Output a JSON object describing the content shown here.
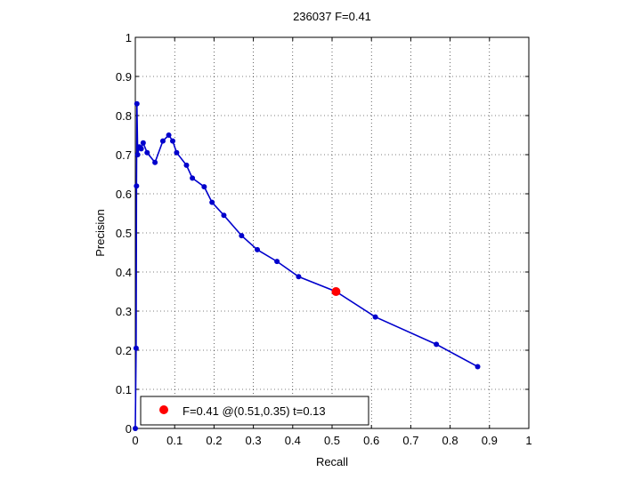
{
  "chart_data": {
    "type": "line",
    "title": "236037 F=0.41",
    "xlabel": "Recall",
    "ylabel": "Precision",
    "xlim": [
      0,
      1
    ],
    "ylim": [
      0,
      1
    ],
    "xticks": [
      "0",
      "0.1",
      "0.2",
      "0.3",
      "0.4",
      "0.5",
      "0.6",
      "0.7",
      "0.8",
      "0.9",
      "1"
    ],
    "yticks": [
      "0",
      "0.1",
      "0.2",
      "0.3",
      "0.4",
      "0.5",
      "0.6",
      "0.7",
      "0.8",
      "0.9",
      "1"
    ],
    "grid": true,
    "legend_position": "bottom-left",
    "series": [
      {
        "color": "#0000cc",
        "points": [
          [
            0.0,
            0.0
          ],
          [
            0.002,
            0.205
          ],
          [
            0.003,
            0.62
          ],
          [
            0.004,
            0.83
          ],
          [
            0.006,
            0.7
          ],
          [
            0.01,
            0.72
          ],
          [
            0.015,
            0.715
          ],
          [
            0.02,
            0.73
          ],
          [
            0.03,
            0.705
          ],
          [
            0.05,
            0.68
          ],
          [
            0.07,
            0.735
          ],
          [
            0.085,
            0.75
          ],
          [
            0.095,
            0.735
          ],
          [
            0.105,
            0.705
          ],
          [
            0.13,
            0.673
          ],
          [
            0.145,
            0.64
          ],
          [
            0.175,
            0.618
          ],
          [
            0.195,
            0.578
          ],
          [
            0.225,
            0.545
          ],
          [
            0.27,
            0.493
          ],
          [
            0.31,
            0.457
          ],
          [
            0.36,
            0.427
          ],
          [
            0.415,
            0.388
          ],
          [
            0.51,
            0.35
          ],
          [
            0.61,
            0.285
          ],
          [
            0.765,
            0.215
          ],
          [
            0.87,
            0.158
          ]
        ]
      }
    ],
    "highlight_point": {
      "recall": 0.51,
      "precision": 0.35,
      "color": "#ff0000",
      "label": "F=0.41 @(0.51,0.35) t=0.13"
    }
  }
}
